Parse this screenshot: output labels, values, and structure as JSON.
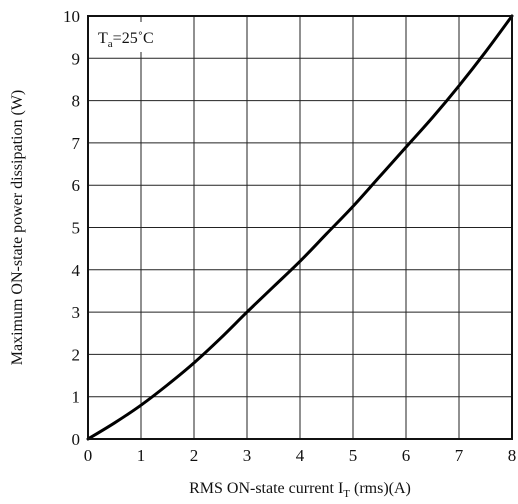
{
  "chart_data": {
    "type": "line",
    "title": "",
    "xlabel_main": "RMS ON-state current I",
    "xlabel_sub": "T",
    "xlabel_tail": " (rms)(A)",
    "ylabel": "Maximum ON-state power dissipation (W)",
    "annotation": {
      "main": "T",
      "sub": "a",
      "tail": "=25˚C"
    },
    "xlim": [
      0,
      8
    ],
    "ylim": [
      0,
      10
    ],
    "xticks": [
      "0",
      "1",
      "2",
      "3",
      "4",
      "5",
      "6",
      "7",
      "8"
    ],
    "yticks": [
      "0",
      "1",
      "2",
      "3",
      "4",
      "5",
      "6",
      "7",
      "8",
      "9",
      "10"
    ],
    "grid": true,
    "series": [
      {
        "x": [
          0,
          0.5,
          1,
          1.5,
          2,
          2.5,
          3,
          3.5,
          4,
          4.5,
          5,
          5.5,
          6,
          6.5,
          7,
          7.5,
          8
        ],
        "y": [
          0,
          0.38,
          0.8,
          1.28,
          1.8,
          2.38,
          3.0,
          3.6,
          4.2,
          4.85,
          5.5,
          6.2,
          6.9,
          7.6,
          8.35,
          9.15,
          10.0
        ]
      }
    ]
  }
}
